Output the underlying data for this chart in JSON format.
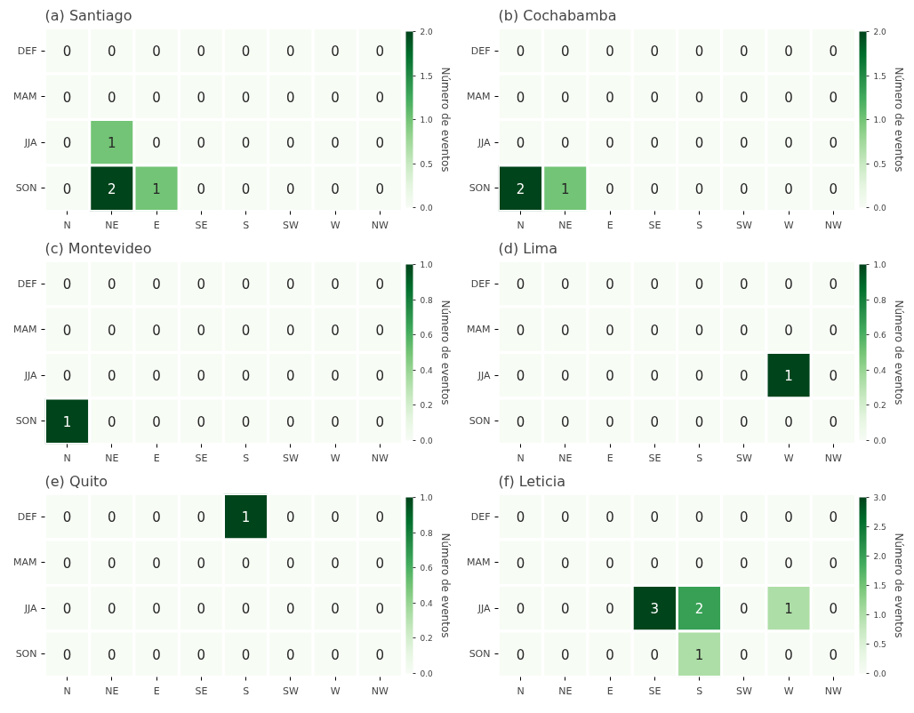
{
  "chart_data": [
    {
      "type": "heatmap",
      "title": "(a) Santiago",
      "categories": [
        "N",
        "NE",
        "E",
        "SE",
        "S",
        "SW",
        "W",
        "NW"
      ],
      "y_categories": [
        "DEF",
        "MAM",
        "JJA",
        "SON"
      ],
      "cells": [
        [
          0,
          0,
          0,
          0,
          0,
          0,
          0,
          0
        ],
        [
          0,
          0,
          0,
          0,
          0,
          0,
          0,
          0
        ],
        [
          0,
          1,
          0,
          0,
          0,
          0,
          0,
          0
        ],
        [
          0,
          2,
          1,
          0,
          0,
          0,
          0,
          0
        ]
      ],
      "clim": [
        0,
        2
      ],
      "cticks": [
        {
          "value": 0,
          "label": "0.0"
        },
        {
          "value": 0.5,
          "label": "0.5"
        },
        {
          "value": 1,
          "label": "1.0"
        },
        {
          "value": 1.5,
          "label": "1.5"
        },
        {
          "value": 2,
          "label": "2.0"
        }
      ],
      "clabel": "Número de eventos",
      "data_labels": true
    },
    {
      "type": "heatmap",
      "title": "(b) Cochabamba",
      "categories": [
        "N",
        "NE",
        "E",
        "SE",
        "S",
        "SW",
        "W",
        "NW"
      ],
      "y_categories": [
        "DEF",
        "MAM",
        "JJA",
        "SON"
      ],
      "cells": [
        [
          0,
          0,
          0,
          0,
          0,
          0,
          0,
          0
        ],
        [
          0,
          0,
          0,
          0,
          0,
          0,
          0,
          0
        ],
        [
          0,
          0,
          0,
          0,
          0,
          0,
          0,
          0
        ],
        [
          2,
          1,
          0,
          0,
          0,
          0,
          0,
          0
        ]
      ],
      "clim": [
        0,
        2
      ],
      "cticks": [
        {
          "value": 0,
          "label": "0.0"
        },
        {
          "value": 0.5,
          "label": "0.5"
        },
        {
          "value": 1,
          "label": "1.0"
        },
        {
          "value": 1.5,
          "label": "1.5"
        },
        {
          "value": 2,
          "label": "2.0"
        }
      ],
      "clabel": "Número de eventos",
      "data_labels": true
    },
    {
      "type": "heatmap",
      "title": "(c) Montevideo",
      "categories": [
        "N",
        "NE",
        "E",
        "SE",
        "S",
        "SW",
        "W",
        "NW"
      ],
      "y_categories": [
        "DEF",
        "MAM",
        "JJA",
        "SON"
      ],
      "cells": [
        [
          0,
          0,
          0,
          0,
          0,
          0,
          0,
          0
        ],
        [
          0,
          0,
          0,
          0,
          0,
          0,
          0,
          0
        ],
        [
          0,
          0,
          0,
          0,
          0,
          0,
          0,
          0
        ],
        [
          1,
          0,
          0,
          0,
          0,
          0,
          0,
          0
        ]
      ],
      "clim": [
        0,
        1
      ],
      "cticks": [
        {
          "value": 0,
          "label": "0.0"
        },
        {
          "value": 0.2,
          "label": "0.2"
        },
        {
          "value": 0.4,
          "label": "0.4"
        },
        {
          "value": 0.6,
          "label": "0.6"
        },
        {
          "value": 0.8,
          "label": "0.8"
        },
        {
          "value": 1,
          "label": "1.0"
        }
      ],
      "clabel": "Número de eventos",
      "data_labels": true
    },
    {
      "type": "heatmap",
      "title": "(d) Lima",
      "categories": [
        "N",
        "NE",
        "E",
        "SE",
        "S",
        "SW",
        "W",
        "NW"
      ],
      "y_categories": [
        "DEF",
        "MAM",
        "JJA",
        "SON"
      ],
      "cells": [
        [
          0,
          0,
          0,
          0,
          0,
          0,
          0,
          0
        ],
        [
          0,
          0,
          0,
          0,
          0,
          0,
          0,
          0
        ],
        [
          0,
          0,
          0,
          0,
          0,
          0,
          1,
          0
        ],
        [
          0,
          0,
          0,
          0,
          0,
          0,
          0,
          0
        ]
      ],
      "clim": [
        0,
        1
      ],
      "cticks": [
        {
          "value": 0,
          "label": "0.0"
        },
        {
          "value": 0.2,
          "label": "0.2"
        },
        {
          "value": 0.4,
          "label": "0.4"
        },
        {
          "value": 0.6,
          "label": "0.6"
        },
        {
          "value": 0.8,
          "label": "0.8"
        },
        {
          "value": 1,
          "label": "1.0"
        }
      ],
      "clabel": "Número de eventos",
      "data_labels": true
    },
    {
      "type": "heatmap",
      "title": "(e) Quito",
      "categories": [
        "N",
        "NE",
        "E",
        "SE",
        "S",
        "SW",
        "W",
        "NW"
      ],
      "y_categories": [
        "DEF",
        "MAM",
        "JJA",
        "SON"
      ],
      "cells": [
        [
          0,
          0,
          0,
          0,
          1,
          0,
          0,
          0
        ],
        [
          0,
          0,
          0,
          0,
          0,
          0,
          0,
          0
        ],
        [
          0,
          0,
          0,
          0,
          0,
          0,
          0,
          0
        ],
        [
          0,
          0,
          0,
          0,
          0,
          0,
          0,
          0
        ]
      ],
      "clim": [
        0,
        1
      ],
      "cticks": [
        {
          "value": 0,
          "label": "0.0"
        },
        {
          "value": 0.2,
          "label": "0.2"
        },
        {
          "value": 0.4,
          "label": "0.4"
        },
        {
          "value": 0.6,
          "label": "0.6"
        },
        {
          "value": 0.8,
          "label": "0.8"
        },
        {
          "value": 1,
          "label": "1.0"
        }
      ],
      "clabel": "Número de eventos",
      "data_labels": true
    },
    {
      "type": "heatmap",
      "title": "(f) Leticia",
      "categories": [
        "N",
        "NE",
        "E",
        "SE",
        "S",
        "SW",
        "W",
        "NW"
      ],
      "y_categories": [
        "DEF",
        "MAM",
        "JJA",
        "SON"
      ],
      "cells": [
        [
          0,
          0,
          0,
          0,
          0,
          0,
          0,
          0
        ],
        [
          0,
          0,
          0,
          0,
          0,
          0,
          0,
          0
        ],
        [
          0,
          0,
          0,
          3,
          2,
          0,
          1,
          0
        ],
        [
          0,
          0,
          0,
          0,
          1,
          0,
          0,
          0
        ]
      ],
      "clim": [
        0,
        3
      ],
      "cticks": [
        {
          "value": 0,
          "label": "0.0"
        },
        {
          "value": 0.5,
          "label": "0.5"
        },
        {
          "value": 1,
          "label": "1.0"
        },
        {
          "value": 1.5,
          "label": "1.5"
        },
        {
          "value": 2,
          "label": "2.0"
        },
        {
          "value": 2.5,
          "label": "2.5"
        },
        {
          "value": 3,
          "label": "3.0"
        }
      ],
      "clabel": "Número de eventos",
      "data_labels": true
    }
  ]
}
